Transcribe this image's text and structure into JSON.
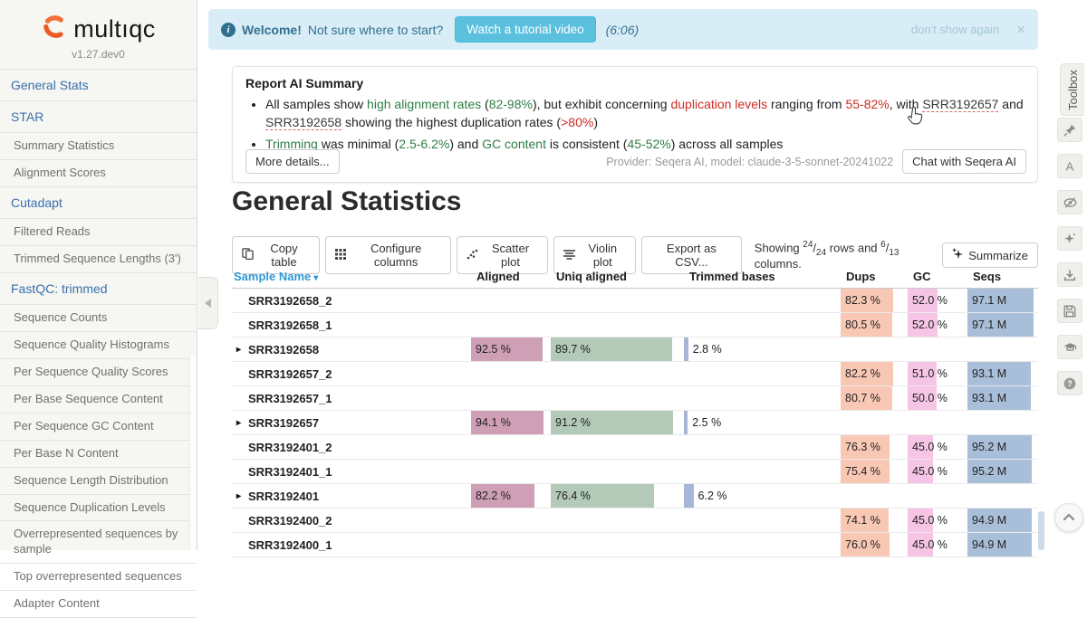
{
  "sidebar": {
    "logo_text": "multıqc",
    "version": "v1.27.dev0",
    "items": [
      {
        "label": "General Stats",
        "level": 1
      },
      {
        "label": "STAR",
        "level": 1
      },
      {
        "label": "Summary Statistics",
        "level": 2
      },
      {
        "label": "Alignment Scores",
        "level": 2
      },
      {
        "label": "Cutadapt",
        "level": 1
      },
      {
        "label": "Filtered Reads",
        "level": 2
      },
      {
        "label": "Trimmed Sequence Lengths (3')",
        "level": 2
      },
      {
        "label": "FastQC: trimmed",
        "level": 1
      },
      {
        "label": "Sequence Counts",
        "level": 2
      },
      {
        "label": "Sequence Quality Histograms",
        "level": 2
      },
      {
        "label": "Per Sequence Quality Scores",
        "level": 2
      },
      {
        "label": "Per Base Sequence Content",
        "level": 2
      },
      {
        "label": "Per Sequence GC Content",
        "level": 2
      },
      {
        "label": "Per Base N Content",
        "level": 2
      },
      {
        "label": "Sequence Length Distribution",
        "level": 2
      },
      {
        "label": "Sequence Duplication Levels",
        "level": 2
      },
      {
        "label": "Overrepresented sequences by sample",
        "level": 2
      },
      {
        "label": "Top overrepresented sequences",
        "level": 2
      },
      {
        "label": "Adapter Content",
        "level": 2
      }
    ]
  },
  "welcome_banner": {
    "title": "Welcome!",
    "text": "Not sure where to start?",
    "button_label": "Watch a tutorial video",
    "duration": "(6:06)",
    "dismiss_label": "don't show again",
    "close_glyph": "×",
    "bg_color": "#d9edf7",
    "button_color": "#5bc0de"
  },
  "ai_summary": {
    "title": "Report AI Summary",
    "bullets": [
      {
        "segments": [
          {
            "text": "All samples show ",
            "style": "plain"
          },
          {
            "text": "high alignment rates",
            "style": "green"
          },
          {
            "text": " (",
            "style": "plain"
          },
          {
            "text": "82-98%",
            "style": "green"
          },
          {
            "text": "), but exhibit concerning ",
            "style": "plain"
          },
          {
            "text": "duplication levels",
            "style": "red"
          },
          {
            "text": " ranging from ",
            "style": "plain"
          },
          {
            "text": "55-82%",
            "style": "red"
          },
          {
            "text": ", with ",
            "style": "plain"
          },
          {
            "text": "SRR3192657",
            "style": "link"
          },
          {
            "text": " and ",
            "style": "plain"
          },
          {
            "text": "SRR3192658",
            "style": "link"
          },
          {
            "text": " showing the highest duplication rates (",
            "style": "plain"
          },
          {
            "text": ">80%",
            "style": "red"
          },
          {
            "text": ")",
            "style": "plain"
          }
        ]
      },
      {
        "segments": [
          {
            "text": "Trimming",
            "style": "green"
          },
          {
            "text": " was minimal (",
            "style": "plain"
          },
          {
            "text": "2.5-6.2%",
            "style": "green"
          },
          {
            "text": ") and ",
            "style": "plain"
          },
          {
            "text": "GC content",
            "style": "green"
          },
          {
            "text": " is consistent (",
            "style": "plain"
          },
          {
            "text": "45-52%",
            "style": "green"
          },
          {
            "text": ") across all samples",
            "style": "plain"
          }
        ]
      }
    ],
    "more_details_label": "More details...",
    "provider": "Provider: Seqera AI, model: claude-3-5-sonnet-20241022",
    "chat_button_label": "Chat with Seqera AI",
    "good_color": "#2f7d44",
    "bad_color": "#cc2b23"
  },
  "general_stats": {
    "title": "General Statistics",
    "toolbar": {
      "copy_table": "Copy table",
      "configure_columns": "Configure columns",
      "scatter_plot": "Scatter plot",
      "violin_plot": "Violin plot",
      "export_csv": "Export as CSV...",
      "summarize": "Summarize",
      "showing": {
        "prefix": "Showing",
        "rows_shown": "24",
        "rows_total": "24",
        "mid": "rows and",
        "cols_shown": "6",
        "cols_total": "13",
        "suffix": "columns."
      }
    },
    "table": {
      "columns": [
        "Sample Name",
        "Aligned",
        "Uniq aligned",
        "Trimmed bases",
        "Dups",
        "GC",
        "Seqs"
      ],
      "sort_caret": "▾",
      "expand_glyph": "▸",
      "colors": {
        "aligned": "#cf9fb5",
        "uniq": "#b3cab8",
        "trimmed": "#a9b5d6",
        "dups": "#f8c8b4",
        "gc": "#f6c5e5",
        "seqs": "#a9bfd9"
      },
      "rows": [
        {
          "sample": "SRR3192658_2",
          "group": false,
          "dups": {
            "label": "82.3 %",
            "pct": 82.3
          },
          "gc": {
            "label": "52.0 %",
            "pct": 52
          },
          "seqs": {
            "label": "97.1 M",
            "pct": 97
          }
        },
        {
          "sample": "SRR3192658_1",
          "group": false,
          "dups": {
            "label": "80.5 %",
            "pct": 80.5
          },
          "gc": {
            "label": "52.0 %",
            "pct": 52
          },
          "seqs": {
            "label": "97.1 M",
            "pct": 97
          }
        },
        {
          "sample": "SRR3192658",
          "group": true,
          "aligned": {
            "label": "92.5 %",
            "pct": 92.5
          },
          "uniq": {
            "label": "89.7 %",
            "pct": 93
          },
          "trimmed": {
            "label": "2.8 %",
            "pct": 2.8
          }
        },
        {
          "sample": "SRR3192657_2",
          "group": false,
          "dups": {
            "label": "82.2 %",
            "pct": 82.2
          },
          "gc": {
            "label": "51.0 %",
            "pct": 51
          },
          "seqs": {
            "label": "93.1 M",
            "pct": 93
          }
        },
        {
          "sample": "SRR3192657_1",
          "group": false,
          "dups": {
            "label": "80.7 %",
            "pct": 80.7
          },
          "gc": {
            "label": "50.0 %",
            "pct": 50
          },
          "seqs": {
            "label": "93.1 M",
            "pct": 93
          }
        },
        {
          "sample": "SRR3192657",
          "group": true,
          "aligned": {
            "label": "94.1 %",
            "pct": 94.1
          },
          "uniq": {
            "label": "91.2 %",
            "pct": 94
          },
          "trimmed": {
            "label": "2.5 %",
            "pct": 2.5
          }
        },
        {
          "sample": "SRR3192401_2",
          "group": false,
          "dups": {
            "label": "76.3 %",
            "pct": 76.3
          },
          "gc": {
            "label": "45.0 %",
            "pct": 45
          },
          "seqs": {
            "label": "95.2 M",
            "pct": 95
          }
        },
        {
          "sample": "SRR3192401_1",
          "group": false,
          "dups": {
            "label": "75.4 %",
            "pct": 75.4
          },
          "gc": {
            "label": "45.0 %",
            "pct": 45
          },
          "seqs": {
            "label": "95.2 M",
            "pct": 95
          }
        },
        {
          "sample": "SRR3192401",
          "group": true,
          "aligned": {
            "label": "82.2 %",
            "pct": 82.2
          },
          "uniq": {
            "label": "76.4 %",
            "pct": 79
          },
          "trimmed": {
            "label": "6.2 %",
            "pct": 6.2
          }
        },
        {
          "sample": "SRR3192400_2",
          "group": false,
          "dups": {
            "label": "74.1 %",
            "pct": 74.1
          },
          "gc": {
            "label": "45.0 %",
            "pct": 45
          },
          "seqs": {
            "label": "94.9 M",
            "pct": 95
          }
        },
        {
          "sample": "SRR3192400_1",
          "group": false,
          "dups": {
            "label": "76.0 %",
            "pct": 76
          },
          "gc": {
            "label": "45.0 %",
            "pct": 45
          },
          "seqs": {
            "label": "94.9 M",
            "pct": 95
          }
        }
      ]
    }
  },
  "toolbox": {
    "label": "Toolbox",
    "buttons": [
      {
        "icon": "pushpin-icon"
      },
      {
        "icon": "font-size-icon"
      },
      {
        "icon": "show-hide-eye-icon"
      },
      {
        "icon": "ai-sparkle-icon"
      },
      {
        "icon": "download-icon"
      },
      {
        "icon": "save-icon"
      },
      {
        "icon": "graduation-cap-icon"
      },
      {
        "icon": "help-icon"
      }
    ]
  }
}
